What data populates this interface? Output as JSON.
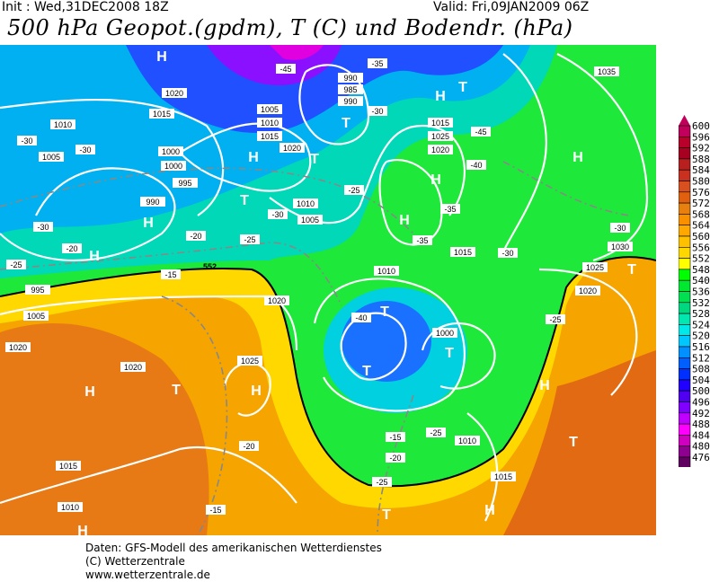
{
  "header": {
    "init": "Init : Wed,31DEC2008 18Z",
    "valid": "Valid: Fri,09JAN2009 06Z",
    "title": "500 hPa Geopot.(gpdm), T (C) und Bodendr. (hPa)"
  },
  "legend": {
    "labels": [
      "600",
      "596",
      "592",
      "588",
      "584",
      "580",
      "576",
      "572",
      "568",
      "564",
      "560",
      "556",
      "552",
      "548",
      "540",
      "536",
      "532",
      "528",
      "524",
      "520",
      "516",
      "512",
      "508",
      "504",
      "500",
      "496",
      "492",
      "488",
      "484",
      "480",
      "476"
    ],
    "colors": [
      "#c0005a",
      "#b8002a",
      "#a80020",
      "#b82020",
      "#c83020",
      "#d85020",
      "#e06010",
      "#e88010",
      "#f89000",
      "#ffa800",
      "#ffc000",
      "#ffd800",
      "#ffff00",
      "#00ff00",
      "#00e830",
      "#00e050",
      "#00d880",
      "#00e8b0",
      "#00e8e8",
      "#00c8ff",
      "#0090ff",
      "#0060ff",
      "#0030ff",
      "#2000ff",
      "#5000f0",
      "#8000ff",
      "#c000ff",
      "#ff00ff",
      "#d000c0",
      "#900090",
      "#600060"
    ]
  },
  "map": {
    "pressure_centers": [
      "H",
      "H",
      "T",
      "T",
      "H",
      "T",
      "H",
      "T",
      "H",
      "H",
      "H",
      "H",
      "T",
      "T",
      "T",
      "H",
      "H",
      "T",
      "H",
      "T",
      "H",
      "T",
      "H",
      "T"
    ],
    "isobar_labels": [
      "1020",
      "1015",
      "1010",
      "1005",
      "1000",
      "995",
      "990",
      "1005",
      "1010",
      "1015",
      "1020",
      "985",
      "990",
      "1015",
      "1025",
      "1020",
      "1015",
      "1010",
      "1005",
      "1000",
      "1035",
      "1030",
      "1025",
      "1020",
      "1020",
      "1025",
      "1020",
      "1015",
      "1010",
      "1010",
      "1015",
      "1010",
      "1000",
      "995",
      "1005",
      "1020",
      "990"
    ],
    "temp_labels": [
      "-45",
      "-35",
      "-30",
      "-30",
      "-45",
      "-40",
      "-35",
      "-25",
      "-30",
      "-25",
      "-20",
      "-25",
      "-30",
      "-20",
      "-15",
      "-40",
      "-35",
      "-30",
      "-25",
      "-20",
      "-15",
      "-25",
      "-20",
      "-15",
      "-30",
      "-30",
      "-25"
    ],
    "contour_label": "552"
  },
  "footer": {
    "line1": "Daten: GFS-Modell des amerikanischen Wetterdienstes",
    "line2": "(C) Wetterzentrale",
    "line3": "www.wetterzentrale.de"
  }
}
